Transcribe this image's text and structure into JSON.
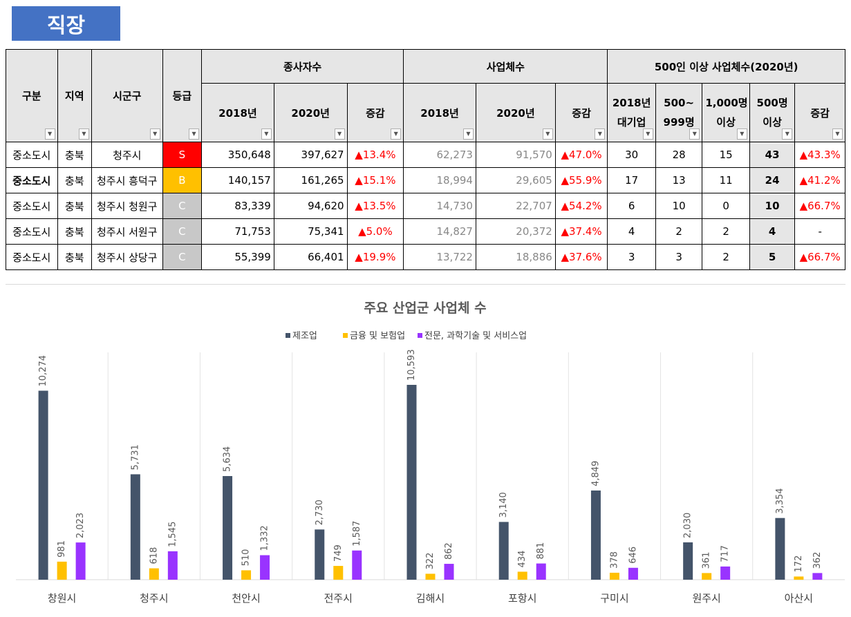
{
  "section_tag": "직장",
  "table": {
    "headers": {
      "gubun": "구분",
      "region": "지역",
      "city": "시군구",
      "grade": "등급",
      "workers": "종사자수",
      "businesses": "사업체수",
      "large": "500인 이상 사업체수(2020년)",
      "y2018": "2018년",
      "y2020": "2020년",
      "change": "증감",
      "large2018_l1": "2018년",
      "large2018_l2": "대기업",
      "g500_l1": "500~",
      "g500_l2": "999명",
      "g1000_l1": "1,000명",
      "g1000_l2": "이상",
      "g500p_l1": "500명",
      "g500p_l2": "이상",
      "large_change": "증감"
    },
    "filter_icon": "dropdown-arrow-icon",
    "active_filter_icon": "filter-funnel-icon",
    "rows": [
      {
        "gubun": "중소도시",
        "region": "충북",
        "city": "청주시",
        "grade": "S",
        "w2018": "350,648",
        "w2020": "397,627",
        "wchg": "▲13.4%",
        "b2018": "62,273",
        "b2020": "91,570",
        "bchg": "▲47.0%",
        "l2018": "30",
        "l500": "28",
        "l1000": "15",
        "l500p": "43",
        "lchg": "▲43.3%"
      },
      {
        "gubun": "중소도시",
        "region": "충북",
        "city": "청주시 흥덕구",
        "grade": "B",
        "w2018": "140,157",
        "w2020": "161,265",
        "wchg": "▲15.1%",
        "b2018": "18,994",
        "b2020": "29,605",
        "bchg": "▲55.9%",
        "l2018": "17",
        "l500": "13",
        "l1000": "11",
        "l500p": "24",
        "lchg": "▲41.2%"
      },
      {
        "gubun": "중소도시",
        "region": "충북",
        "city": "청주시 청원구",
        "grade": "C",
        "w2018": "83,339",
        "w2020": "94,620",
        "wchg": "▲13.5%",
        "b2018": "14,730",
        "b2020": "22,707",
        "bchg": "▲54.2%",
        "l2018": "6",
        "l500": "10",
        "l1000": "0",
        "l500p": "10",
        "lchg": "▲66.7%"
      },
      {
        "gubun": "중소도시",
        "region": "충북",
        "city": "청주시 서원구",
        "grade": "C",
        "w2018": "71,753",
        "w2020": "75,341",
        "wchg": "▲5.0%",
        "b2018": "14,827",
        "b2020": "20,372",
        "bchg": "▲37.4%",
        "l2018": "4",
        "l500": "2",
        "l1000": "2",
        "l500p": "4",
        "lchg": "-"
      },
      {
        "gubun": "중소도시",
        "region": "충북",
        "city": "청주시 상당구",
        "grade": "C",
        "w2018": "55,399",
        "w2020": "66,401",
        "wchg": "▲19.9%",
        "b2018": "13,722",
        "b2020": "18,886",
        "bchg": "▲37.6%",
        "l2018": "3",
        "l500": "3",
        "l1000": "2",
        "l500p": "5",
        "lchg": "▲66.7%"
      }
    ]
  },
  "colors": {
    "tag": "#4472c4",
    "grade_S": "#ff0000",
    "grade_B": "#ffc000",
    "grade_C": "#c8c8c8",
    "increase": "#ff0000"
  },
  "chart_data": {
    "type": "bar",
    "title": "주요 산업군 사업체 수",
    "categories": [
      "창원시",
      "청주시",
      "천안시",
      "전주시",
      "김해시",
      "포항시",
      "구미시",
      "원주시",
      "아산시"
    ],
    "series": [
      {
        "name": "제조업",
        "color": "#44546a",
        "values": [
          10274,
          5731,
          5634,
          2730,
          10593,
          3140,
          4849,
          2030,
          3354
        ]
      },
      {
        "name": "금융 및 보험업",
        "color": "#ffc000",
        "values": [
          981,
          618,
          510,
          749,
          322,
          434,
          378,
          361,
          172
        ]
      },
      {
        "name": "전문, 과학기술 및 서비스업",
        "color": "#9933ff",
        "values": [
          2023,
          1545,
          1332,
          1587,
          862,
          881,
          646,
          717,
          362
        ]
      }
    ],
    "ylim": [
      0,
      10593
    ],
    "legend": "top-center",
    "grid": false
  }
}
